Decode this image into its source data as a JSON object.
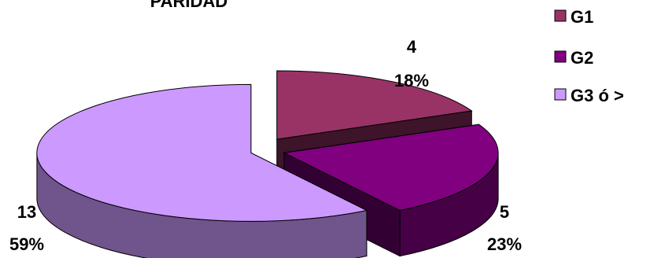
{
  "chart_data": {
    "type": "pie",
    "title": "PARIDAD",
    "legend_position": "top-right",
    "three_d": true,
    "exploded": true,
    "slices": [
      {
        "name": "G1",
        "value": 4,
        "percent": "18%",
        "color": "#993366"
      },
      {
        "name": "G2",
        "value": 5,
        "percent": "23%",
        "color": "#800080"
      },
      {
        "name": "G3 ó >",
        "value": 13,
        "percent": "59%",
        "color": "#cc99ff"
      }
    ]
  }
}
